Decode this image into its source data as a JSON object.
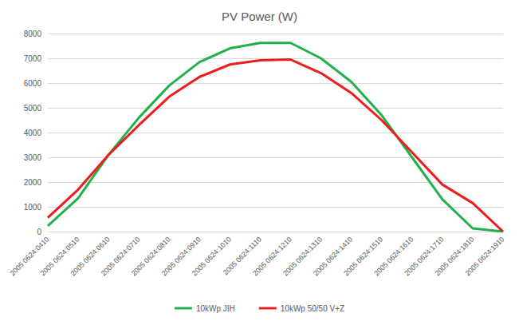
{
  "chart_data": {
    "type": "line",
    "title": "PV Power (W)",
    "categories": [
      "2005 0624:0410",
      "2005 0624:0510",
      "2005 0624:0610",
      "2005 0624:0710",
      "2005 0624:0810",
      "2005 0624:0910",
      "2005 0624:1010",
      "2005 0624:1110",
      "2005 0624:1210",
      "2005 0624:1310",
      "2005 0624:1410",
      "2005 0624:1510",
      "2005 0624:1610",
      "2005 0624:1710",
      "2005 0624:1810",
      "2005 0624:1910"
    ],
    "series": [
      {
        "name": "10kWp JIH",
        "color": "#22b04c",
        "values": [
          230,
          1350,
          3100,
          4600,
          5900,
          6850,
          7400,
          7620,
          7620,
          7000,
          6050,
          4700,
          3000,
          1300,
          130,
          0
        ]
      },
      {
        "name": "10kWp 50/50 V+Z",
        "color": "#ee1c1c",
        "values": [
          560,
          1700,
          3100,
          4300,
          5450,
          6250,
          6750,
          6920,
          6950,
          6400,
          5600,
          4500,
          3200,
          1900,
          1150,
          0
        ]
      }
    ],
    "ylim": [
      0,
      8000
    ],
    "yticks": [
      0,
      1000,
      2000,
      3000,
      4000,
      5000,
      6000,
      7000,
      8000
    ],
    "grid": true,
    "legend": "bottom"
  }
}
